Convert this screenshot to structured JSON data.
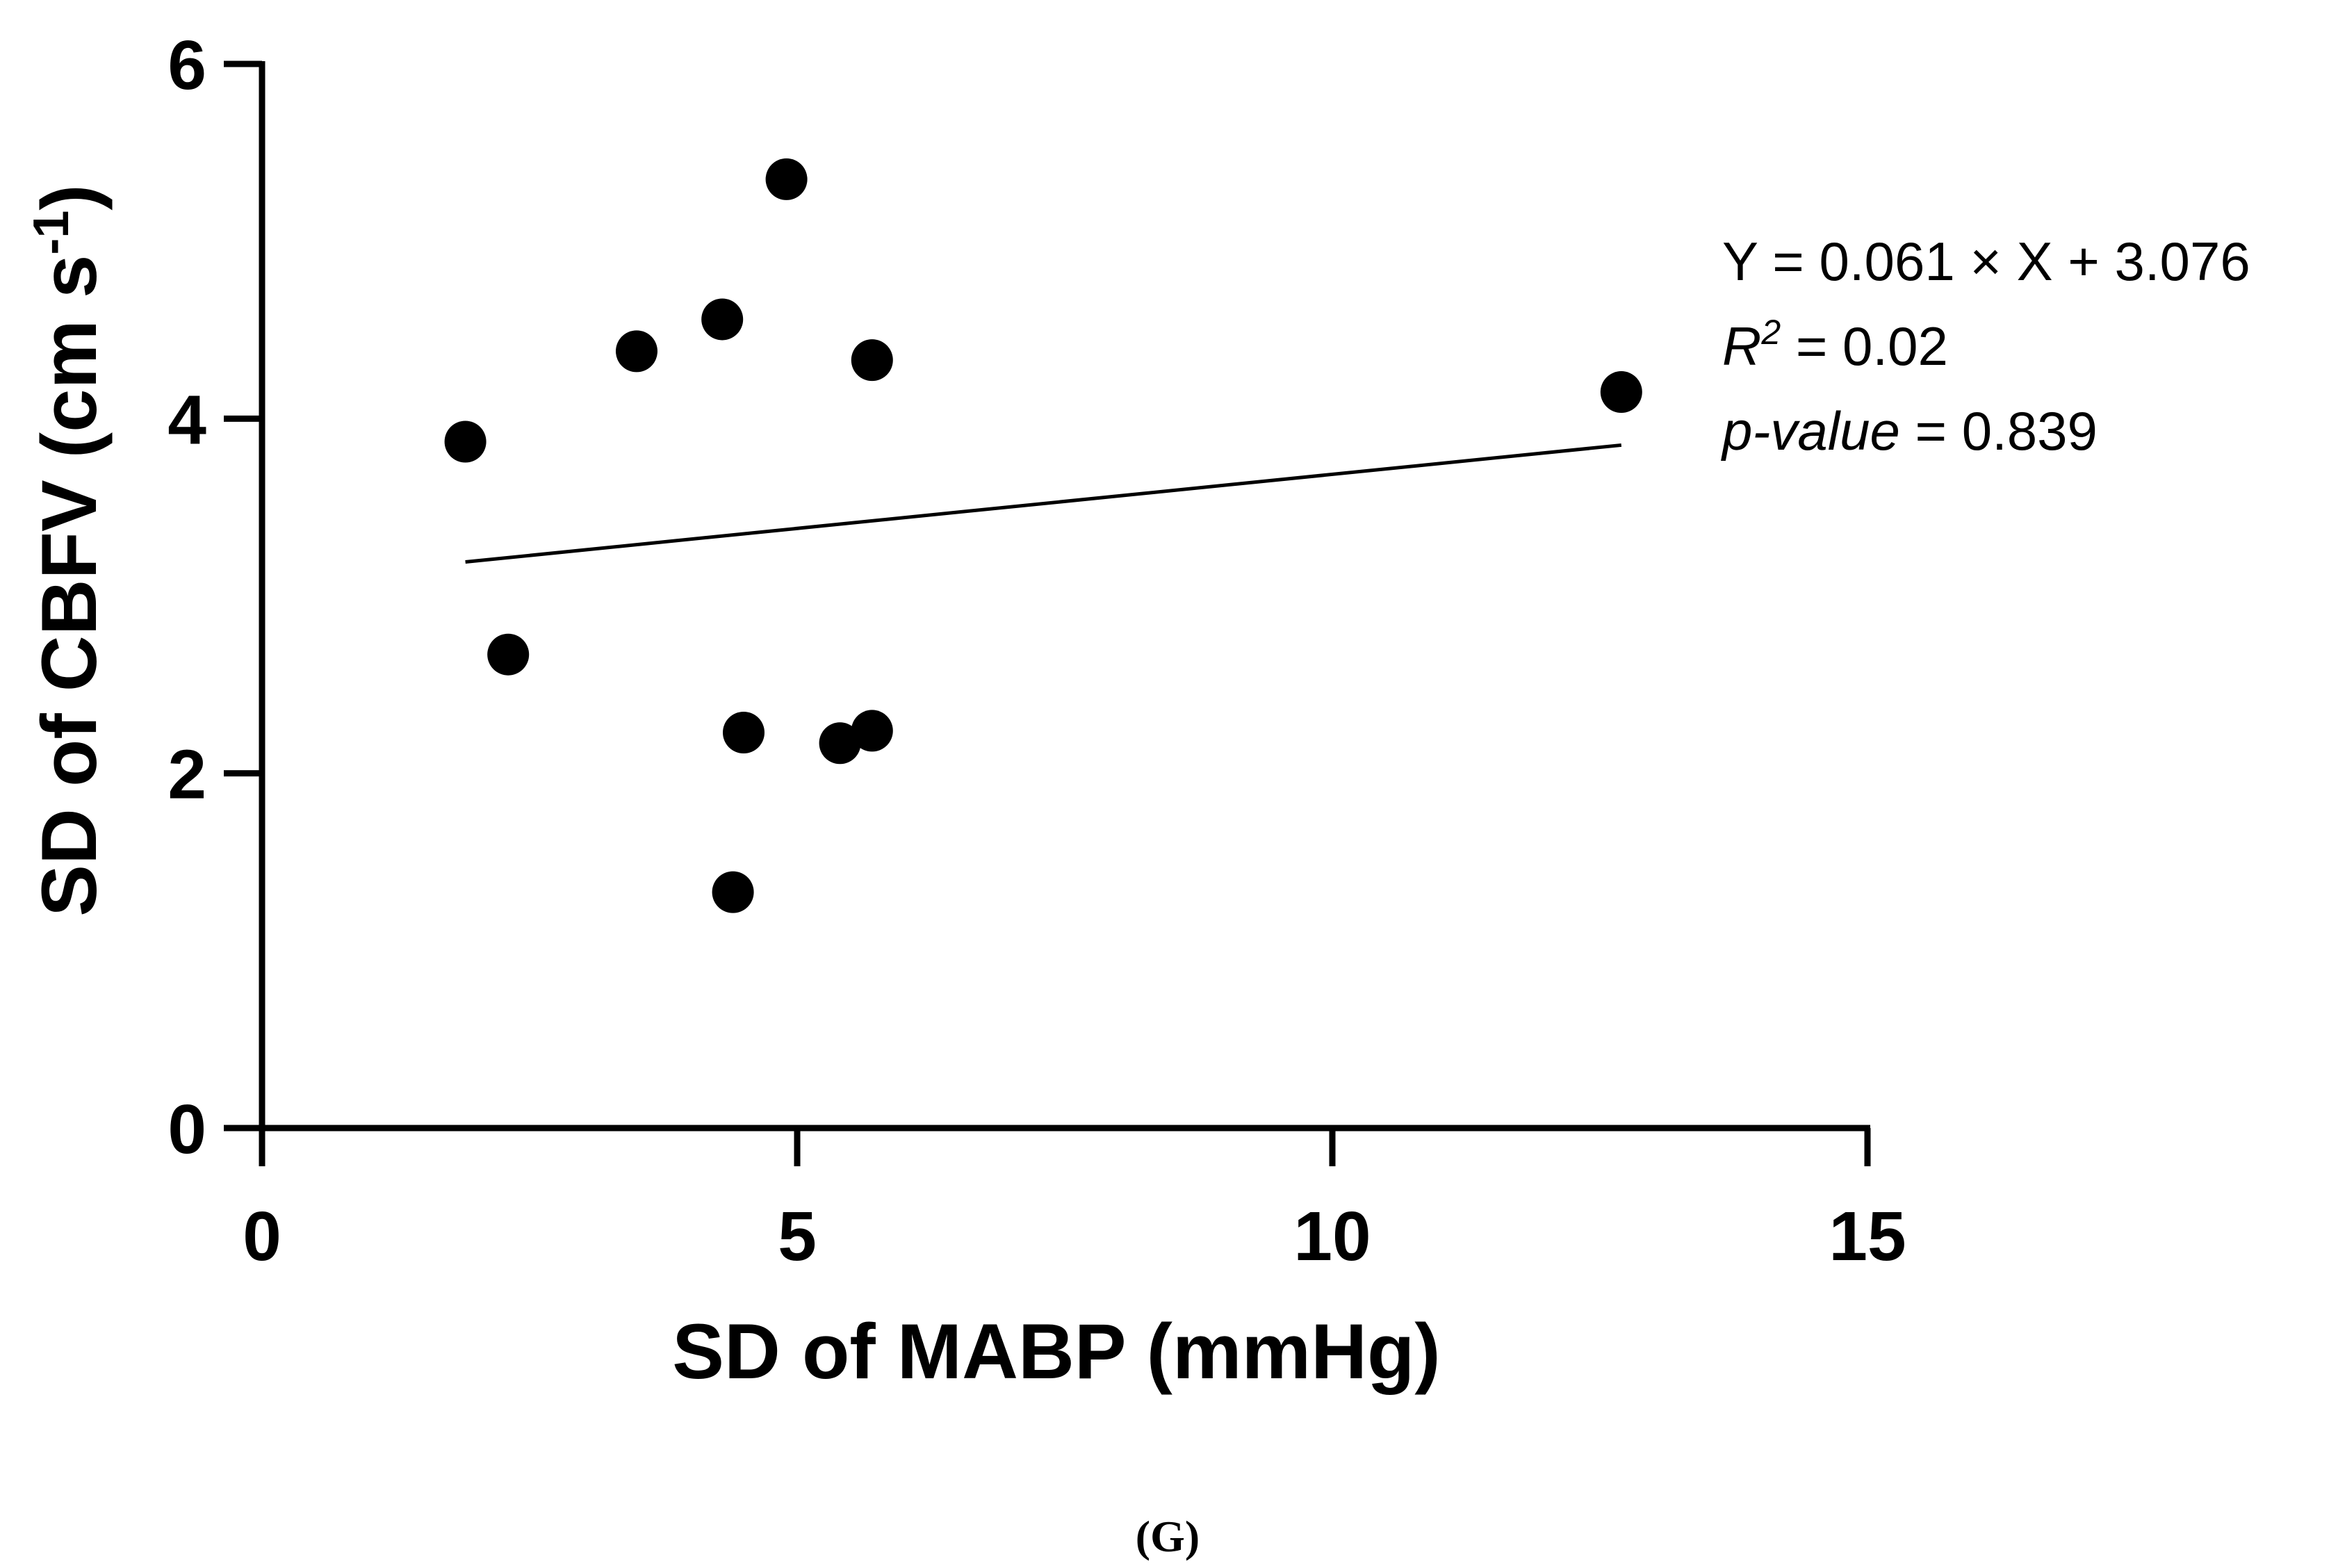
{
  "chart_data": {
    "type": "scatter",
    "title": "",
    "xlabel": "SD of MABP (mmHg)",
    "ylabel_main": "SD of CBFV (cm s",
    "ylabel_sup": "-1",
    "ylabel_close": ")",
    "xlim": [
      0,
      15
    ],
    "ylim": [
      0,
      6
    ],
    "x_ticks": [
      0,
      5,
      10,
      15
    ],
    "y_ticks": [
      0,
      2,
      4,
      6
    ],
    "x_tick_labels": [
      "0",
      "5",
      "10",
      "15"
    ],
    "y_tick_labels": [
      "0",
      "2",
      "4",
      "6"
    ],
    "points": [
      {
        "x": 1.9,
        "y": 3.87
      },
      {
        "x": 2.3,
        "y": 2.67
      },
      {
        "x": 3.5,
        "y": 4.38
      },
      {
        "x": 4.3,
        "y": 4.56
      },
      {
        "x": 4.4,
        "y": 1.33
      },
      {
        "x": 4.5,
        "y": 2.23
      },
      {
        "x": 4.9,
        "y": 5.35
      },
      {
        "x": 5.4,
        "y": 2.17
      },
      {
        "x": 5.7,
        "y": 4.33
      },
      {
        "x": 5.7,
        "y": 2.24
      },
      {
        "x": 12.7,
        "y": 4.15
      }
    ],
    "fit_line": {
      "x_start": 1.9,
      "x_end": 12.7,
      "slope": 0.061,
      "intercept": 3.076
    },
    "annotations": {
      "equation": "Y = 0.061 × X + 3.076",
      "r2_label": "R",
      "r2_sup": "2",
      "r2_value": " = 0.02",
      "p_label": "p-value",
      "p_value": " = 0.839"
    },
    "caption": "(G)"
  },
  "colors": {
    "axis": "#000000",
    "marker": "#000000",
    "fit_line": "#000000",
    "background": "#ffffff"
  }
}
